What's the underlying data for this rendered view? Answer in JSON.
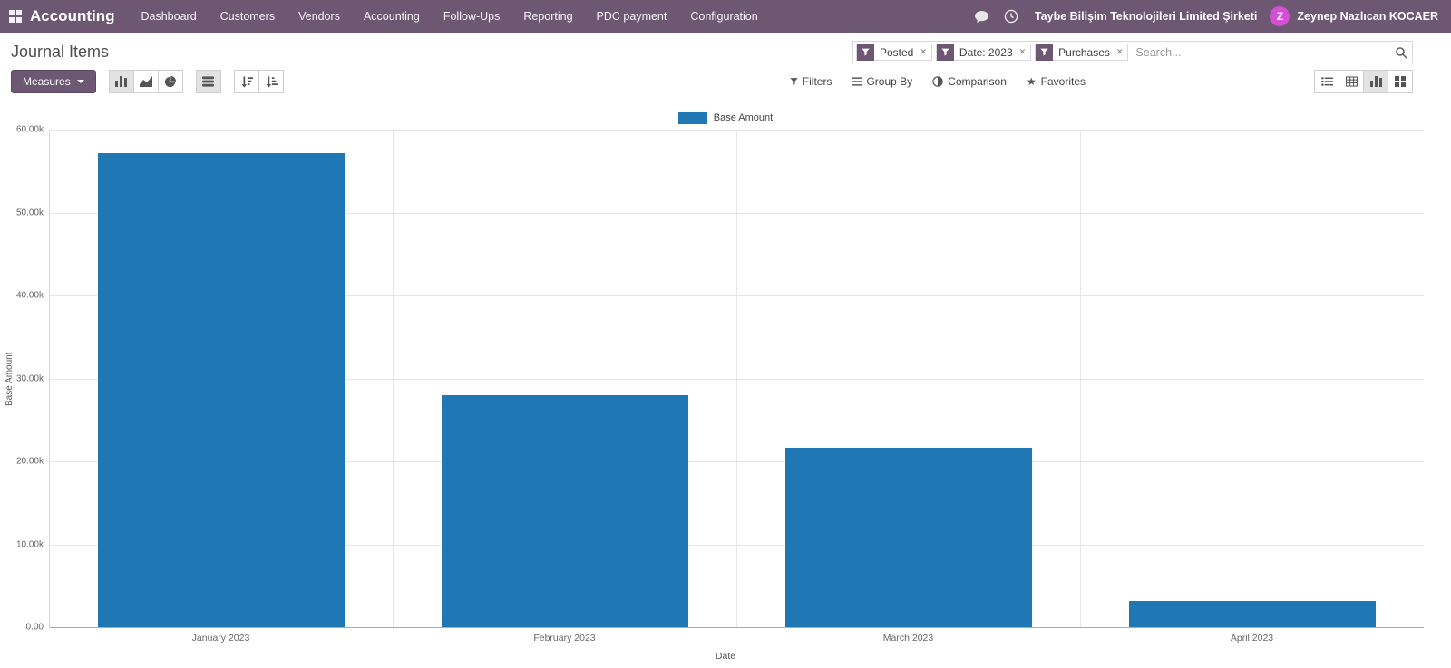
{
  "colors": {
    "navbar": "#6e5773",
    "primary": "#6e5773",
    "avatar": "#d44fd4"
  },
  "navbar": {
    "app_name": "Accounting",
    "menus": [
      "Dashboard",
      "Customers",
      "Vendors",
      "Accounting",
      "Follow-Ups",
      "Reporting",
      "PDC payment",
      "Configuration"
    ],
    "company": "Taybe Bilişim Teknolojileri Limited Şirketi",
    "user_name": "Zeynep Nazlıcan KOCAER",
    "user_initial": "Z"
  },
  "page": {
    "title": "Journal Items"
  },
  "search": {
    "facets": [
      "Posted",
      "Date: 2023",
      "Purchases"
    ],
    "placeholder": "Search..."
  },
  "toolbar": {
    "measures": "Measures",
    "filters": "Filters",
    "group_by": "Group By",
    "comparison": "Comparison",
    "favorites": "Favorites"
  },
  "chart_data": {
    "type": "bar",
    "title": "",
    "categories": [
      "January 2023",
      "February 2023",
      "March 2023",
      "April 2023"
    ],
    "values": [
      57200,
      28000,
      21600,
      3200
    ],
    "series_name": "Base Amount",
    "xlabel": "Date",
    "ylabel": "Base Amount",
    "ylim": [
      0,
      60000
    ],
    "yticks": [
      "60.00k",
      "50.00k",
      "40.00k",
      "30.00k",
      "20.00k",
      "10.00k",
      "0.00"
    ],
    "bar_color": "#1f77b4",
    "legend_position": "top",
    "grid": true
  }
}
